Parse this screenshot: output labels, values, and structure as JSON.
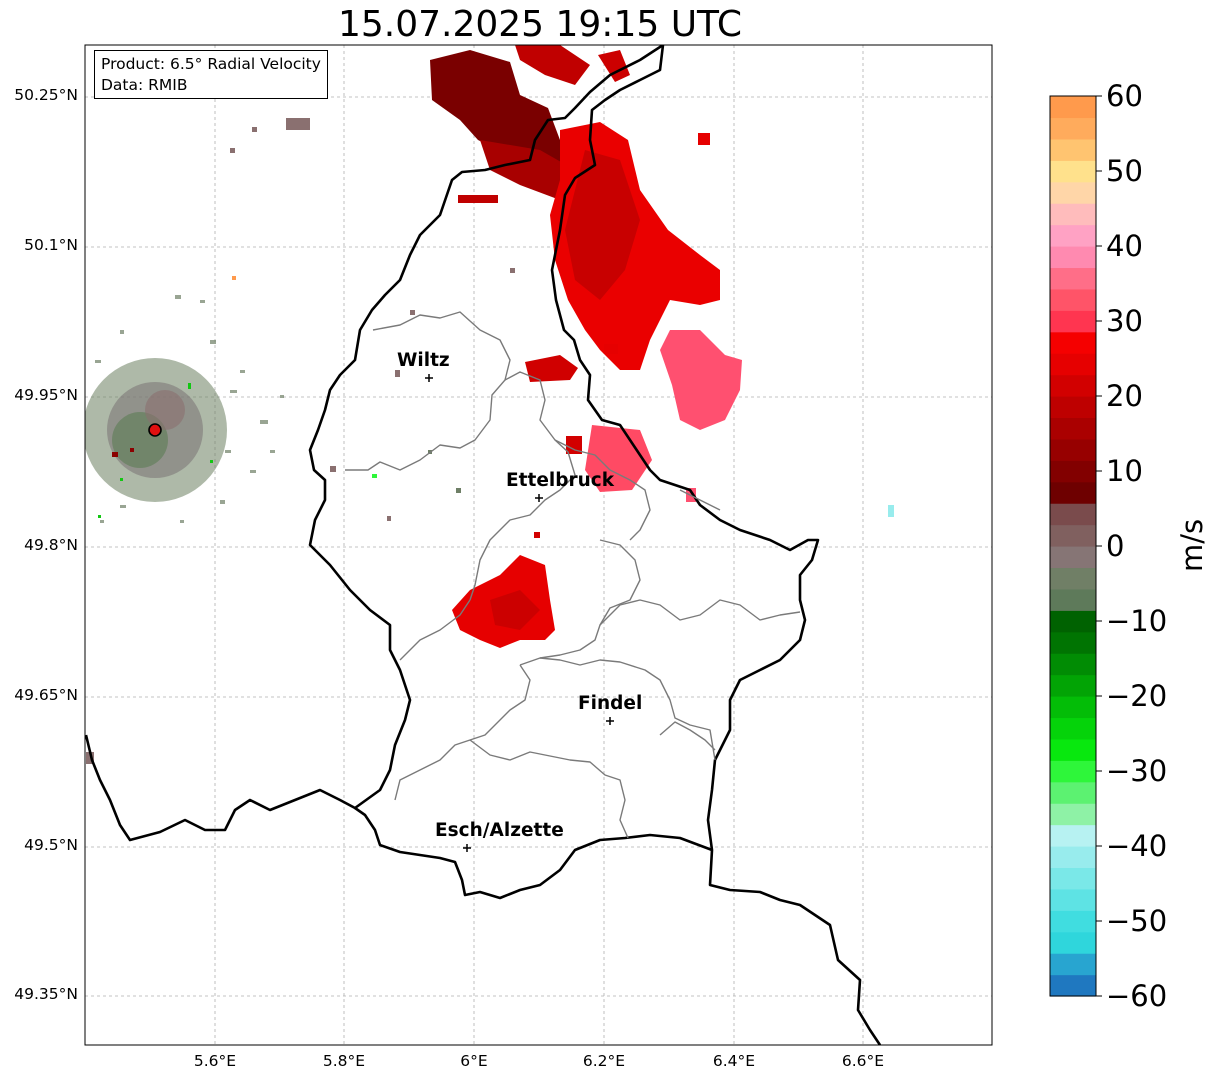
{
  "title": "15.07.2025 19:15 UTC",
  "info_box": {
    "product": "Product: 6.5° Radial Velocity",
    "data": "Data: RMIB"
  },
  "map": {
    "lat_ticks": [
      "50.25°N",
      "50.1°N",
      "49.95°N",
      "49.8°N",
      "49.65°N",
      "49.5°N",
      "49.35°N"
    ],
    "lon_ticks": [
      "5.6°E",
      "5.8°E",
      "6°E",
      "6.2°E",
      "6.4°E",
      "6.6°E"
    ],
    "cities": [
      {
        "name": "Wiltz"
      },
      {
        "name": "Ettelbruck"
      },
      {
        "name": "Findel"
      },
      {
        "name": "Esch/Alzette"
      }
    ],
    "radar_marker": "radar-site"
  },
  "colorbar": {
    "unit": "m/s",
    "ticks": [
      "60",
      "50",
      "40",
      "30",
      "20",
      "10",
      "0",
      "−10",
      "−20",
      "−30",
      "−40",
      "−50",
      "−60"
    ],
    "min": -60,
    "max": 60,
    "colors": [
      "#1f78c0",
      "#28a5d0",
      "#2fd6dc",
      "#40dde0",
      "#5ee3e4",
      "#7ae8e8",
      "#98eced",
      "#b7f2f2",
      "#8ef2a6",
      "#5cf271",
      "#2ef63a",
      "#08e80e",
      "#05d30a",
      "#03bd07",
      "#02a405",
      "#018c04",
      "#007402",
      "#006201",
      "#5e7a5a",
      "#707f66",
      "#867575",
      "#80605f",
      "#7a4b4c",
      "#6e0000",
      "#820000",
      "#970000",
      "#aa0000",
      "#be0000",
      "#d20000",
      "#e60000",
      "#f50000",
      "#ff3550",
      "#ff5468",
      "#ff6e88",
      "#ff8ab0",
      "#ffa2c4",
      "#ffbcbc",
      "#ffd6a8",
      "#ffe18c",
      "#ffc470",
      "#ffab5c",
      "#ff9a4c"
    ]
  }
}
